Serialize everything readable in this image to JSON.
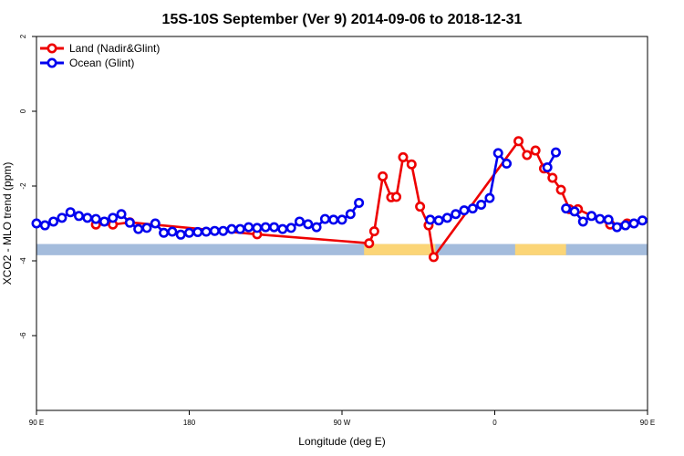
{
  "chart_data": {
    "type": "line",
    "title": "15S-10S September (Ver 9)   2014-09-06 to 2018-12-31",
    "xlabel": "Longitude (deg E)",
    "ylabel": "XCO2 - MLO trend (ppm)",
    "xlim": [
      90,
      450
    ],
    "ylim": [
      -8,
      2
    ],
    "x_ticks": [
      {
        "value": 90,
        "label": "90 E"
      },
      {
        "value": 180,
        "label": "180"
      },
      {
        "value": 270,
        "label": "90 W"
      },
      {
        "value": 360,
        "label": "0"
      },
      {
        "value": 450,
        "label": "90 E"
      },
      {
        "value": 540,
        "label": "180"
      }
    ],
    "y_ticks": [
      {
        "value": 2,
        "label": "2"
      },
      {
        "value": 0,
        "label": "0"
      },
      {
        "value": -2,
        "label": "-2"
      },
      {
        "value": -4,
        "label": "-4"
      },
      {
        "value": -6,
        "label": "-6"
      }
    ],
    "legend_position": "top-left",
    "series": [
      {
        "name": "Land (Nadir&Glint)",
        "color": "#ee0000",
        "points": [
          [
            125,
            -3.03
          ],
          [
            135,
            -3.03
          ],
          [
            145,
            -2.97
          ],
          [
            220,
            -3.29
          ],
          [
            286,
            -3.53
          ],
          [
            289,
            -3.21
          ],
          [
            294,
            -1.74
          ],
          [
            299,
            -2.3
          ],
          [
            302,
            -2.29
          ],
          [
            306,
            -1.23
          ],
          [
            311,
            -1.42
          ],
          [
            316,
            -2.55
          ],
          [
            321,
            -3.05
          ],
          [
            324,
            -3.9
          ],
          [
            374,
            -0.8
          ],
          [
            379,
            -1.17
          ],
          [
            384,
            -1.05
          ],
          [
            389,
            -1.53
          ],
          [
            394,
            -1.78
          ],
          [
            399,
            -2.1
          ],
          [
            404,
            -2.62
          ],
          [
            409,
            -2.62
          ],
          [
            428,
            -3.03
          ],
          [
            438,
            -3.0
          ]
        ]
      },
      {
        "name": "Ocean (Glint)",
        "color": "#0000ee",
        "points": [
          [
            90,
            -3.0
          ],
          [
            95,
            -3.05
          ],
          [
            100,
            -2.95
          ],
          [
            105,
            -2.85
          ],
          [
            110,
            -2.7
          ],
          [
            115,
            -2.8
          ],
          [
            120,
            -2.85
          ],
          [
            125,
            -2.88
          ],
          [
            130,
            -2.95
          ],
          [
            135,
            -2.85
          ],
          [
            140,
            -2.75
          ],
          [
            145,
            -2.98
          ],
          [
            150,
            -3.15
          ],
          [
            155,
            -3.12
          ],
          [
            160,
            -3.0
          ],
          [
            165,
            -3.25
          ],
          [
            170,
            -3.22
          ],
          [
            175,
            -3.3
          ],
          [
            180,
            -3.25
          ],
          [
            185,
            -3.23
          ],
          [
            190,
            -3.22
          ],
          [
            195,
            -3.2
          ],
          [
            200,
            -3.2
          ],
          [
            205,
            -3.15
          ],
          [
            210,
            -3.15
          ],
          [
            215,
            -3.1
          ],
          [
            220,
            -3.12
          ],
          [
            225,
            -3.1
          ],
          [
            230,
            -3.1
          ],
          [
            235,
            -3.15
          ],
          [
            240,
            -3.12
          ],
          [
            245,
            -2.95
          ],
          [
            250,
            -3.02
          ],
          [
            255,
            -3.1
          ],
          [
            260,
            -2.88
          ],
          [
            265,
            -2.9
          ],
          [
            270,
            -2.9
          ],
          [
            275,
            -2.75
          ],
          [
            280,
            -2.45
          ],
          null,
          [
            322,
            -2.9
          ],
          [
            327,
            -2.92
          ],
          [
            332,
            -2.85
          ],
          [
            337,
            -2.75
          ],
          [
            342,
            -2.65
          ],
          [
            347,
            -2.6
          ],
          [
            352,
            -2.5
          ],
          [
            357,
            -2.32
          ],
          [
            362,
            -1.12
          ],
          [
            367,
            -1.4
          ],
          null,
          [
            391,
            -1.5
          ],
          [
            396,
            -1.1
          ],
          null,
          [
            402,
            -2.6
          ],
          [
            407,
            -2.68
          ],
          [
            412,
            -2.95
          ],
          [
            417,
            -2.8
          ],
          [
            422,
            -2.88
          ],
          [
            427,
            -2.9
          ],
          [
            432,
            -3.1
          ],
          [
            437,
            -3.05
          ],
          [
            442,
            -3.0
          ],
          [
            447,
            -2.92
          ],
          [
            452,
            -3.0
          ],
          [
            457,
            -3.02
          ],
          [
            462,
            -2.95
          ],
          [
            467,
            -2.85
          ],
          [
            472,
            -2.72
          ],
          [
            477,
            -2.8
          ],
          [
            482,
            -2.82
          ],
          [
            487,
            -2.85
          ],
          [
            492,
            -2.92
          ],
          [
            497,
            -2.9
          ],
          [
            502,
            -2.8
          ],
          [
            507,
            -2.95
          ],
          [
            512,
            -3.15
          ],
          [
            517,
            -3.1
          ],
          [
            522,
            -3.0
          ],
          [
            527,
            -3.25
          ],
          [
            532,
            -3.2
          ],
          [
            540,
            -3.35
          ]
        ]
      }
    ],
    "bottom_band": {
      "ocean_color": "#a4bcdc",
      "land_color": "#fbd577",
      "y_top": -3.55,
      "y_bottom": -3.85,
      "land_segments": [
        [
          283,
          325
        ],
        [
          372,
          402
        ]
      ]
    }
  }
}
